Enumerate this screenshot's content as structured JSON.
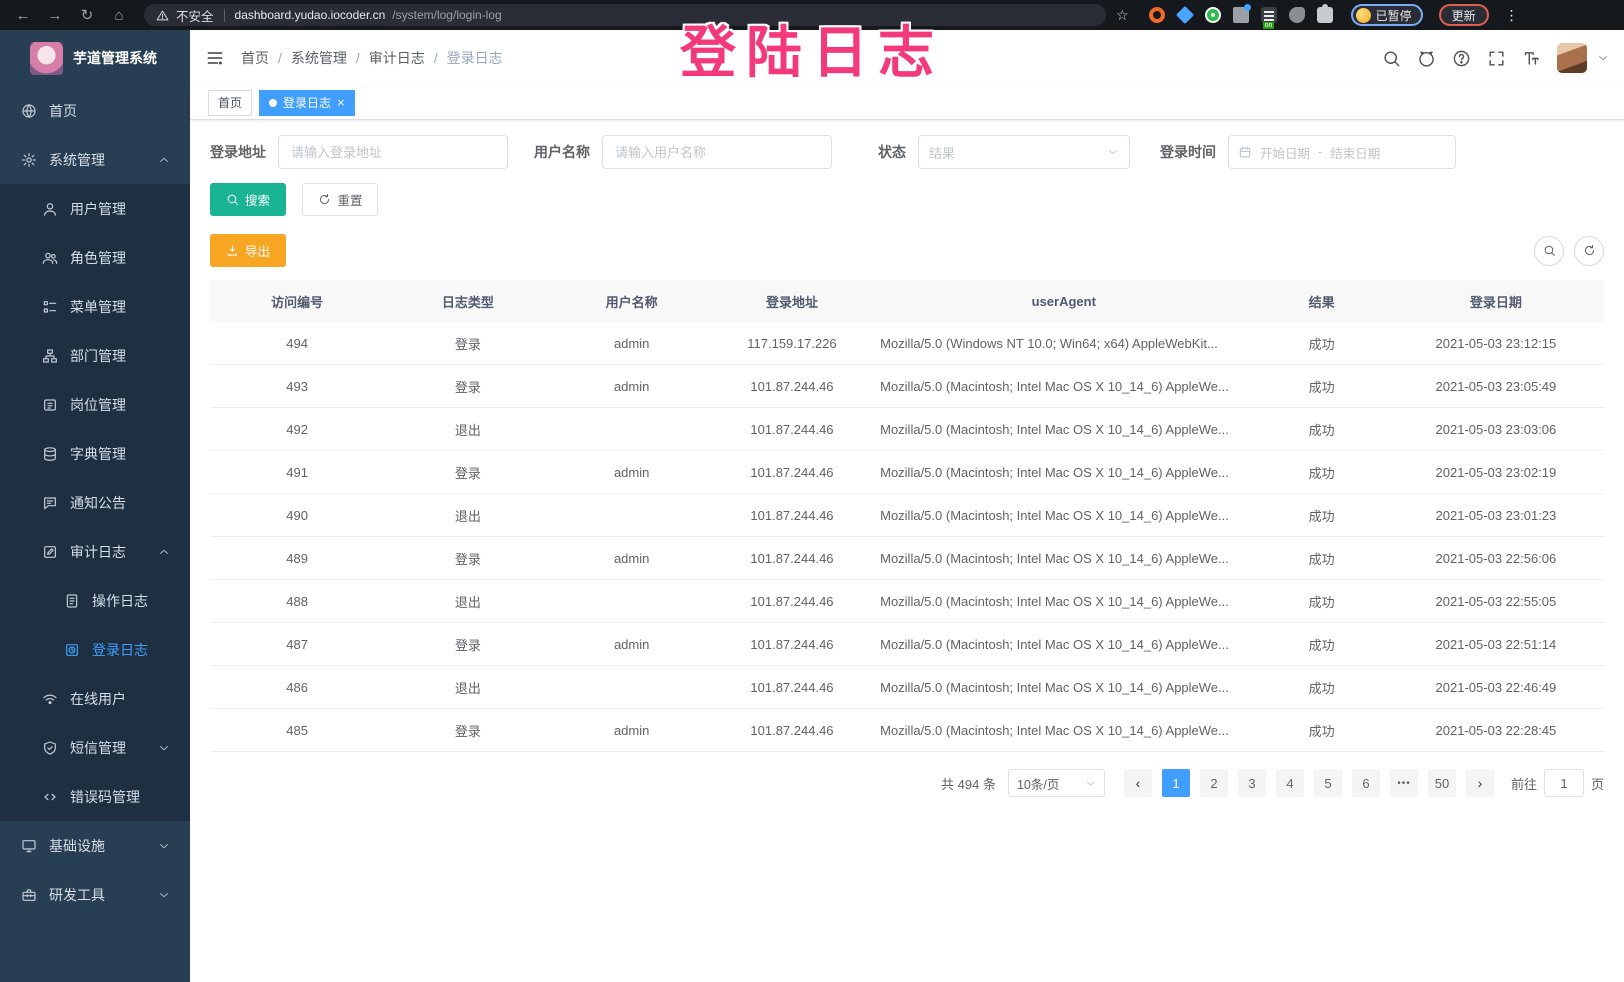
{
  "browser": {
    "security_label": "不安全",
    "url_host": "dashboard.yudao.iocoder.cn",
    "url_path": "/system/log/login-log",
    "extension_badge": "on",
    "profile_badge": "已暂停",
    "update_button": "更新"
  },
  "icons": {
    "back": "←",
    "forward": "→",
    "reload": "↻",
    "home": "⌂",
    "star": "☆",
    "kebab": "⋮",
    "prev": "‹",
    "next": "›",
    "close": "×",
    "pages_ellipsis": "•••"
  },
  "overlay": {
    "text": "登陆日志",
    "color": "#f4397b"
  },
  "sidebar": {
    "logo_title": "芋道管理系统",
    "items": [
      {
        "label": "首页"
      },
      {
        "label": "系统管理"
      },
      {
        "label": "用户管理"
      },
      {
        "label": "角色管理"
      },
      {
        "label": "菜单管理"
      },
      {
        "label": "部门管理"
      },
      {
        "label": "岗位管理"
      },
      {
        "label": "字典管理"
      },
      {
        "label": "通知公告"
      },
      {
        "label": "审计日志"
      },
      {
        "label": "操作日志"
      },
      {
        "label": "登录日志"
      },
      {
        "label": "在线用户"
      },
      {
        "label": "短信管理"
      },
      {
        "label": "错误码管理"
      },
      {
        "label": "基础设施"
      },
      {
        "label": "研发工具"
      }
    ]
  },
  "header": {
    "breadcrumbs": [
      "首页",
      "系统管理",
      "审计日志",
      "登录日志"
    ],
    "separator": "/"
  },
  "tabs": [
    {
      "label": "首页"
    },
    {
      "label": "登录日志"
    }
  ],
  "filters": {
    "address_label": "登录地址",
    "address_placeholder": "请输入登录地址",
    "user_label": "用户名称",
    "user_placeholder": "请输入用户名称",
    "status_label": "状态",
    "status_placeholder": "结果",
    "time_label": "登录时间",
    "start_placeholder": "开始日期",
    "range_separator": "-",
    "end_placeholder": "结束日期"
  },
  "actions": {
    "search": "搜索",
    "reset": "重置",
    "export": "导出"
  },
  "table": {
    "columns": [
      "访问编号",
      "日志类型",
      "用户名称",
      "登录地址",
      "userAgent",
      "结果",
      "登录日期"
    ],
    "rows": [
      {
        "id": "494",
        "type": "登录",
        "user": "admin",
        "ip": "117.159.17.226",
        "agent": "Mozilla/5.0 (Windows NT 10.0; Win64; x64) AppleWebKit...",
        "result": "成功",
        "date": "2021-05-03 23:12:15"
      },
      {
        "id": "493",
        "type": "登录",
        "user": "admin",
        "ip": "101.87.244.46",
        "agent": "Mozilla/5.0 (Macintosh; Intel Mac OS X 10_14_6) AppleWe...",
        "result": "成功",
        "date": "2021-05-03 23:05:49"
      },
      {
        "id": "492",
        "type": "退出",
        "user": "",
        "ip": "101.87.244.46",
        "agent": "Mozilla/5.0 (Macintosh; Intel Mac OS X 10_14_6) AppleWe...",
        "result": "成功",
        "date": "2021-05-03 23:03:06"
      },
      {
        "id": "491",
        "type": "登录",
        "user": "admin",
        "ip": "101.87.244.46",
        "agent": "Mozilla/5.0 (Macintosh; Intel Mac OS X 10_14_6) AppleWe...",
        "result": "成功",
        "date": "2021-05-03 23:02:19"
      },
      {
        "id": "490",
        "type": "退出",
        "user": "",
        "ip": "101.87.244.46",
        "agent": "Mozilla/5.0 (Macintosh; Intel Mac OS X 10_14_6) AppleWe...",
        "result": "成功",
        "date": "2021-05-03 23:01:23"
      },
      {
        "id": "489",
        "type": "登录",
        "user": "admin",
        "ip": "101.87.244.46",
        "agent": "Mozilla/5.0 (Macintosh; Intel Mac OS X 10_14_6) AppleWe...",
        "result": "成功",
        "date": "2021-05-03 22:56:06"
      },
      {
        "id": "488",
        "type": "退出",
        "user": "",
        "ip": "101.87.244.46",
        "agent": "Mozilla/5.0 (Macintosh; Intel Mac OS X 10_14_6) AppleWe...",
        "result": "成功",
        "date": "2021-05-03 22:55:05"
      },
      {
        "id": "487",
        "type": "登录",
        "user": "admin",
        "ip": "101.87.244.46",
        "agent": "Mozilla/5.0 (Macintosh; Intel Mac OS X 10_14_6) AppleWe...",
        "result": "成功",
        "date": "2021-05-03 22:51:14"
      },
      {
        "id": "486",
        "type": "退出",
        "user": "",
        "ip": "101.87.244.46",
        "agent": "Mozilla/5.0 (Macintosh; Intel Mac OS X 10_14_6) AppleWe...",
        "result": "成功",
        "date": "2021-05-03 22:46:49"
      },
      {
        "id": "485",
        "type": "登录",
        "user": "admin",
        "ip": "101.87.244.46",
        "agent": "Mozilla/5.0 (Macintosh; Intel Mac OS X 10_14_6) AppleWe...",
        "result": "成功",
        "date": "2021-05-03 22:28:45"
      }
    ]
  },
  "pagination": {
    "total_text": "共 494 条",
    "page_size": "10条/页",
    "pages": [
      "1",
      "2",
      "3",
      "4",
      "5",
      "6",
      "50"
    ],
    "active_page": "1",
    "goto_label": "前往",
    "goto_value": "1",
    "goto_suffix": "页"
  },
  "colors": {
    "accent_blue": "#409eff",
    "search_button": "#1ab394",
    "export_button": "#f6a623",
    "overlay_pink": "#f4397b",
    "sidebar_bg": "#283e52",
    "sidebar_sub_bg": "#1e2f41",
    "success_text": "#606266"
  }
}
